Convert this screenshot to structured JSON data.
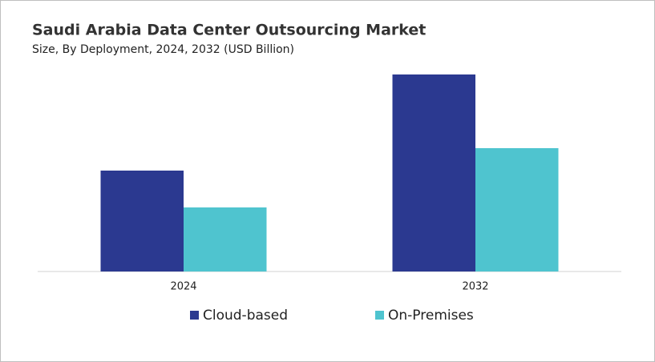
{
  "chart_data": {
    "type": "bar",
    "title": "Saudi Arabia Data Center Outsourcing Market",
    "subtitle": "Size, By Deployment, 2024, 2032 (USD Billion)",
    "categories": [
      "2024",
      "2032"
    ],
    "series": [
      {
        "name": "Cloud-based",
        "color": "#2b3990",
        "values": [
          1.26,
          2.46
        ]
      },
      {
        "name": "On-Premises",
        "color": "#4fc4cf",
        "values": [
          0.8,
          1.54
        ]
      }
    ],
    "ylim": [
      0,
      2.6
    ],
    "legend": "bottom"
  }
}
